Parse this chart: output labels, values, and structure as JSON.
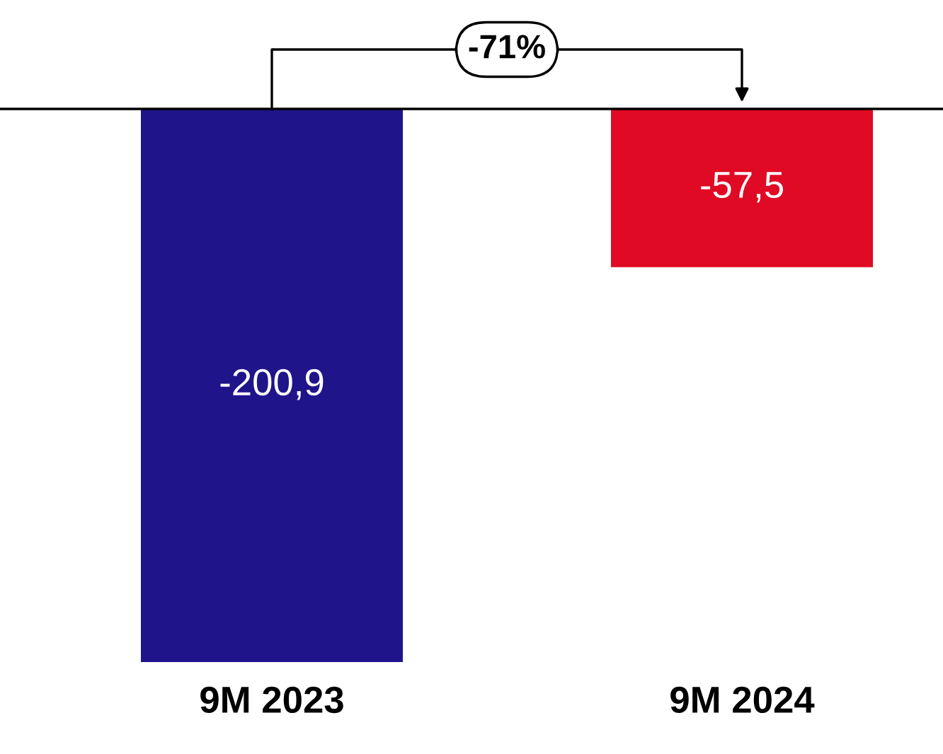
{
  "chart_data": {
    "type": "bar",
    "categories": [
      "9M 2023",
      "9M 2024"
    ],
    "values": [
      -200.9,
      -57.5
    ],
    "colors": [
      "#1f148a",
      "#e00a24"
    ],
    "value_labels": [
      "-200,9",
      "-57,5"
    ],
    "annotations": [
      "-71%"
    ],
    "grid": false
  }
}
